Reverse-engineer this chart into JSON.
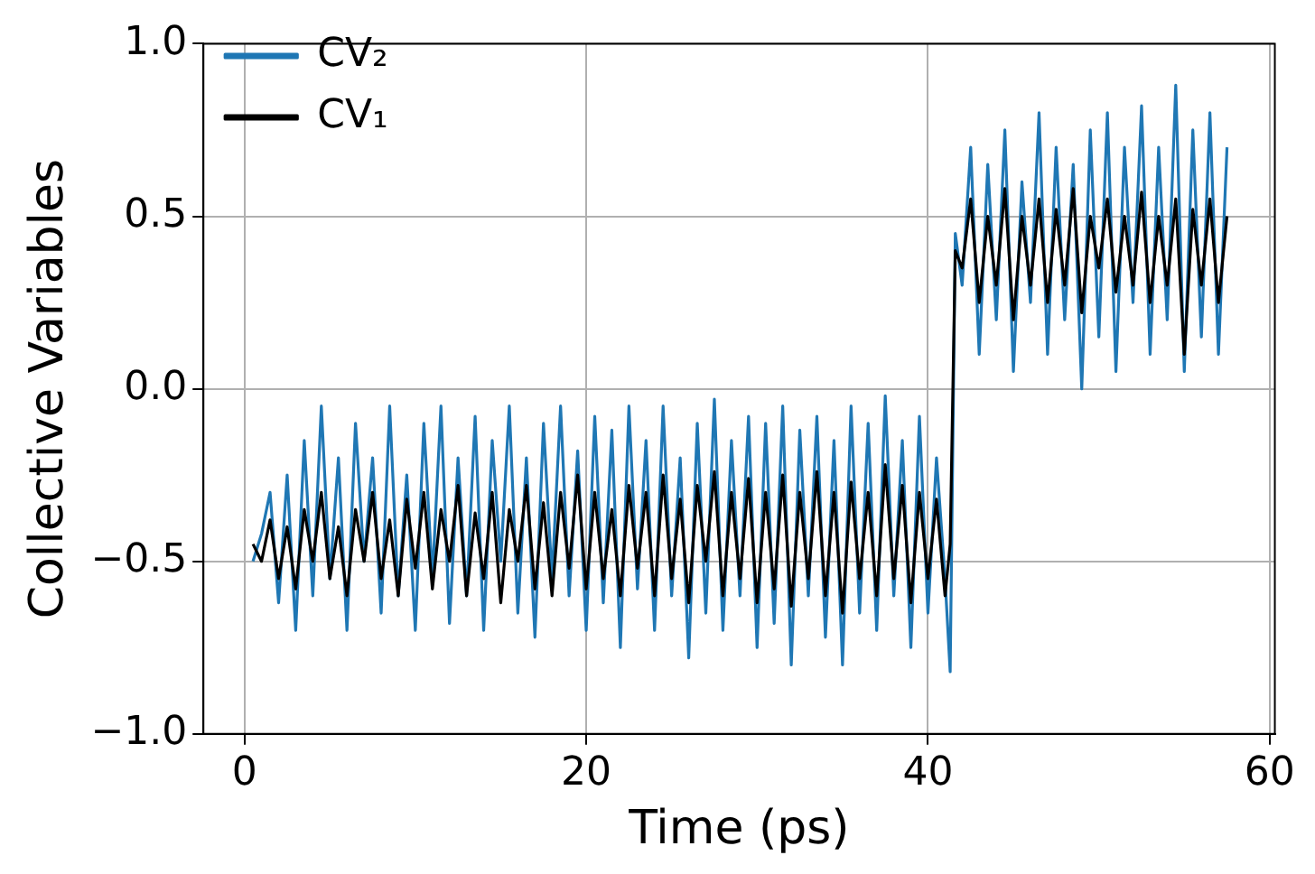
{
  "chart_data": {
    "type": "line",
    "xlabel": "Time (ps)",
    "ylabel": "Collective Variables",
    "x": [
      0.5,
      1,
      1.5,
      2,
      2.5,
      3,
      3.5,
      4,
      4.5,
      5,
      5.5,
      6,
      6.5,
      7,
      7.5,
      8,
      8.5,
      9,
      9.5,
      10,
      10.5,
      11,
      11.5,
      12,
      12.5,
      13,
      13.5,
      14,
      14.5,
      15,
      15.5,
      16,
      16.5,
      17,
      17.5,
      18,
      18.5,
      19,
      19.5,
      20,
      20.5,
      21,
      21.5,
      22,
      22.5,
      23,
      23.5,
      24,
      24.5,
      25,
      25.5,
      26,
      26.5,
      27,
      27.5,
      28,
      28.5,
      29,
      29.5,
      30,
      30.5,
      31,
      31.5,
      32,
      32.5,
      33,
      33.5,
      34,
      34.5,
      35,
      35.5,
      36,
      36.5,
      37,
      37.5,
      38,
      38.5,
      39,
      39.5,
      40,
      40.5,
      41,
      41.3,
      41.6,
      42,
      42.5,
      43,
      43.5,
      44,
      44.5,
      45,
      45.5,
      46,
      46.5,
      47,
      47.5,
      48,
      48.5,
      49,
      49.5,
      50,
      50.5,
      51,
      51.5,
      52,
      52.5,
      53,
      53.5,
      54,
      54.5,
      55,
      55.5,
      56,
      56.5,
      57,
      57.5
    ],
    "series": [
      {
        "name": "CV₂",
        "color": "#1f77b4",
        "values": [
          -0.5,
          -0.42,
          -0.3,
          -0.62,
          -0.25,
          -0.7,
          -0.15,
          -0.6,
          -0.05,
          -0.55,
          -0.2,
          -0.7,
          -0.1,
          -0.5,
          -0.2,
          -0.65,
          -0.05,
          -0.6,
          -0.25,
          -0.7,
          -0.1,
          -0.55,
          -0.05,
          -0.68,
          -0.2,
          -0.6,
          -0.08,
          -0.7,
          -0.15,
          -0.5,
          -0.05,
          -0.65,
          -0.2,
          -0.72,
          -0.1,
          -0.55,
          -0.05,
          -0.6,
          -0.18,
          -0.7,
          -0.08,
          -0.62,
          -0.12,
          -0.75,
          -0.05,
          -0.58,
          -0.15,
          -0.7,
          -0.05,
          -0.6,
          -0.2,
          -0.78,
          -0.1,
          -0.65,
          -0.03,
          -0.7,
          -0.15,
          -0.6,
          -0.08,
          -0.75,
          -0.1,
          -0.68,
          -0.05,
          -0.8,
          -0.12,
          -0.6,
          -0.08,
          -0.72,
          -0.15,
          -0.8,
          -0.05,
          -0.65,
          -0.1,
          -0.7,
          -0.02,
          -0.6,
          -0.15,
          -0.75,
          -0.08,
          -0.65,
          -0.2,
          -0.55,
          -0.82,
          0.45,
          0.3,
          0.7,
          0.1,
          0.65,
          0.2,
          0.75,
          0.05,
          0.6,
          0.25,
          0.8,
          0.1,
          0.7,
          0.2,
          0.65,
          0.0,
          0.75,
          0.15,
          0.8,
          0.05,
          0.7,
          0.25,
          0.82,
          0.1,
          0.7,
          0.2,
          0.88,
          0.05,
          0.75,
          0.15,
          0.8,
          0.1,
          0.7
        ]
      },
      {
        "name": "CV₁",
        "color": "#000000",
        "values": [
          -0.45,
          -0.5,
          -0.38,
          -0.55,
          -0.4,
          -0.58,
          -0.35,
          -0.5,
          -0.3,
          -0.55,
          -0.4,
          -0.6,
          -0.35,
          -0.5,
          -0.3,
          -0.55,
          -0.38,
          -0.6,
          -0.32,
          -0.52,
          -0.3,
          -0.58,
          -0.35,
          -0.5,
          -0.28,
          -0.6,
          -0.36,
          -0.55,
          -0.3,
          -0.62,
          -0.35,
          -0.5,
          -0.28,
          -0.58,
          -0.33,
          -0.6,
          -0.3,
          -0.52,
          -0.25,
          -0.58,
          -0.3,
          -0.55,
          -0.35,
          -0.6,
          -0.28,
          -0.52,
          -0.3,
          -0.6,
          -0.25,
          -0.55,
          -0.32,
          -0.62,
          -0.28,
          -0.5,
          -0.24,
          -0.6,
          -0.3,
          -0.55,
          -0.26,
          -0.62,
          -0.3,
          -0.58,
          -0.25,
          -0.63,
          -0.3,
          -0.55,
          -0.24,
          -0.6,
          -0.3,
          -0.65,
          -0.27,
          -0.55,
          -0.3,
          -0.6,
          -0.22,
          -0.55,
          -0.28,
          -0.62,
          -0.3,
          -0.55,
          -0.32,
          -0.6,
          -0.45,
          0.4,
          0.35,
          0.55,
          0.25,
          0.5,
          0.3,
          0.58,
          0.2,
          0.5,
          0.3,
          0.55,
          0.25,
          0.52,
          0.3,
          0.58,
          0.22,
          0.5,
          0.35,
          0.55,
          0.28,
          0.5,
          0.3,
          0.57,
          0.25,
          0.5,
          0.3,
          0.55,
          0.1,
          0.52,
          0.3,
          0.55,
          0.25,
          0.5
        ]
      }
    ],
    "xlim": [
      -2.4,
      60.3
    ],
    "xticks": [
      0,
      20,
      40,
      60
    ],
    "ylim": [
      -1,
      1
    ],
    "yticks": [
      {
        "value": -1,
        "label": "−1.0"
      },
      {
        "value": -0.5,
        "label": "−0.5"
      },
      {
        "value": 0,
        "label": "0.0"
      },
      {
        "value": 0.5,
        "label": "0.5"
      },
      {
        "value": 1,
        "label": "1.0"
      }
    ],
    "grid": true,
    "legend": "top left",
    "marker": "none",
    "line_style": "solid"
  }
}
